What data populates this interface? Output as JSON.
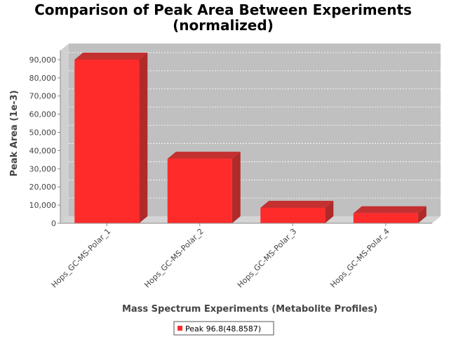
{
  "chart_data": {
    "type": "bar",
    "title": "Comparison of Peak Area Between Experiments",
    "subtitle": "(normalized)",
    "xlabel": "Mass Spectrum Experiments (Metabolite Profiles)",
    "ylabel": "Peak Area (1e-3)",
    "categories": [
      "Hops_GC-MS-Polar_1",
      "Hops_GC-MS-Polar_2",
      "Hops_GC-MS-Polar_3",
      "Hops_GC-MS-Polar_4"
    ],
    "series": [
      {
        "name": "Peak 96.8(48.8587)",
        "values": [
          90000,
          35500,
          8500,
          5500
        ],
        "color": "#ff2b2b"
      }
    ],
    "ylim": [
      0,
      95000
    ],
    "yticks": [
      0,
      10000,
      20000,
      30000,
      40000,
      50000,
      60000,
      70000,
      80000,
      90000
    ],
    "yticklabels": [
      "0",
      "10,000",
      "20,000",
      "30,000",
      "40,000",
      "50,000",
      "60,000",
      "70,000",
      "80,000",
      "90,000"
    ],
    "grid": true,
    "legend_position": "bottom",
    "plot_background": "#c0c0c0"
  }
}
